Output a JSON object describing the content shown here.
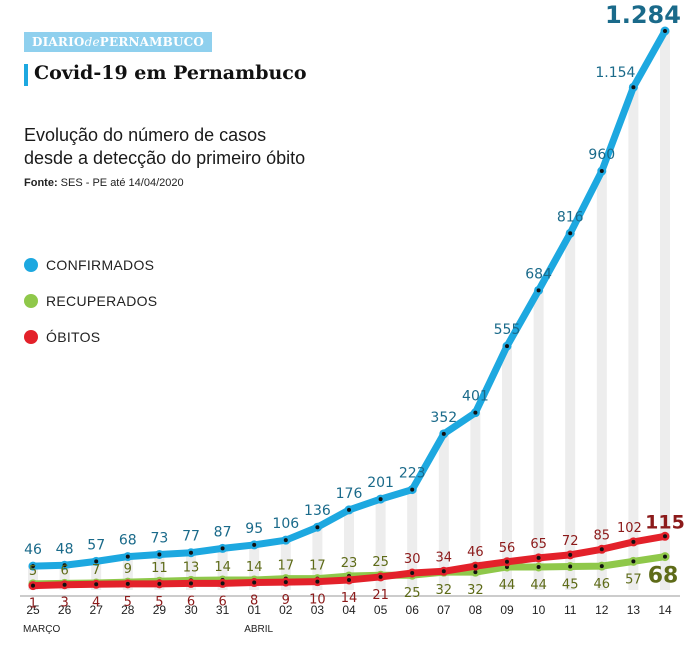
{
  "brand": {
    "pre": "DIARIO",
    "mid": "de",
    "post": "PERNAMBUCO"
  },
  "title": "Covid-19 em Pernambuco",
  "subtitle_line1": "Evolução do número de casos",
  "subtitle_line2": "desde a detecção do primeiro óbito",
  "source_label": "Fonte:",
  "source_text": "SES - PE até 14/04/2020",
  "colors": {
    "confirmados": "#1da8e0",
    "recuperados": "#8fc84a",
    "obitos": "#e3212a",
    "conf_text": "#1a6a8a",
    "rec_text": "#5e6b18",
    "obi_text": "#8c1a1a",
    "brand": "#8fd0ee"
  },
  "chart_data": {
    "type": "line",
    "categories": [
      "25",
      "26",
      "27",
      "28",
      "29",
      "30",
      "31",
      "01",
      "02",
      "03",
      "04",
      "05",
      "06",
      "07",
      "08",
      "09",
      "10",
      "11",
      "12",
      "13",
      "14"
    ],
    "month_labels": [
      {
        "label": "MARÇO",
        "index": 0
      },
      {
        "label": "ABRIL",
        "index": 7
      }
    ],
    "series": [
      {
        "name": "CONFIRMADOS",
        "values": [
          46,
          48,
          57,
          68,
          73,
          77,
          87,
          95,
          106,
          136,
          176,
          201,
          223,
          352,
          401,
          555,
          684,
          816,
          960,
          1154,
          1284
        ],
        "labels": [
          "46",
          "48",
          "57",
          "68",
          "73",
          "77",
          "87",
          "95",
          "106",
          "136",
          "176",
          "201",
          "223",
          "352",
          "401",
          "555",
          "684",
          "816",
          "960",
          "1.154",
          "1.284"
        ]
      },
      {
        "name": "RECUPERADOS",
        "values": [
          5,
          6,
          7,
          9,
          11,
          13,
          14,
          14,
          17,
          17,
          23,
          25,
          25,
          32,
          32,
          44,
          44,
          45,
          46,
          57,
          68
        ],
        "labels": [
          "5",
          "6",
          "7",
          "9",
          "11",
          "13",
          "14",
          "14",
          "17",
          "17",
          "23",
          "25",
          "25",
          "32",
          "32",
          "44",
          "44",
          "45",
          "46",
          "57",
          "68"
        ]
      },
      {
        "name": "ÓBITOS",
        "values": [
          1,
          3,
          4,
          5,
          5,
          6,
          6,
          8,
          9,
          10,
          14,
          21,
          30,
          34,
          46,
          56,
          65,
          72,
          85,
          102,
          115
        ],
        "labels": [
          "1",
          "3",
          "4",
          "5",
          "5",
          "6",
          "6",
          "8",
          "9",
          "10",
          "14",
          "21",
          "30",
          "34",
          "46",
          "56",
          "65",
          "72",
          "85",
          "102",
          "115"
        ]
      }
    ],
    "ylim": [
      0,
      1284
    ],
    "legend": "left"
  }
}
